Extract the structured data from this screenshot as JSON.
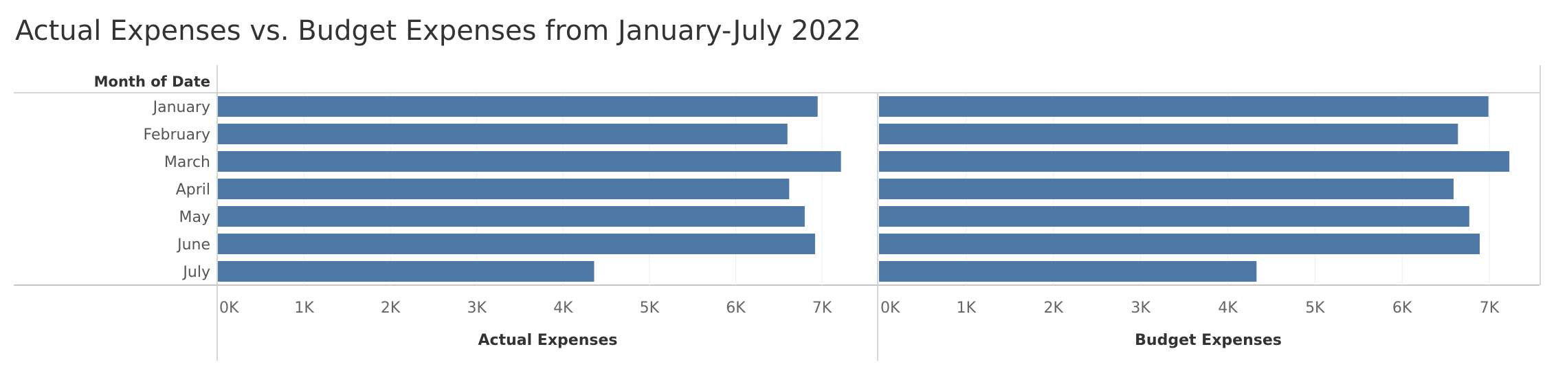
{
  "title": "Actual Expenses vs. Budget Expenses from January-July 2022",
  "chart_data": {
    "type": "bar",
    "orientation": "horizontal",
    "title": "Actual Expenses vs. Budget Expenses from January-July 2022",
    "row_header": "Month of Date",
    "categories": [
      "January",
      "February",
      "March",
      "April",
      "May",
      "June",
      "July"
    ],
    "panels": [
      {
        "xlabel": "Actual Expenses",
        "ticks": [
          "0K",
          "1K",
          "2K",
          "3K",
          "4K",
          "5K",
          "6K",
          "7K"
        ],
        "xlim": [
          0,
          7500
        ],
        "values": [
          6950,
          6600,
          7220,
          6620,
          6800,
          6920,
          4360
        ]
      },
      {
        "xlabel": "Budget Expenses",
        "ticks": [
          "0K",
          "1K",
          "2K",
          "3K",
          "4K",
          "5K",
          "6K",
          "7K"
        ],
        "xlim": [
          0,
          7500
        ],
        "values": [
          6990,
          6640,
          7230,
          6590,
          6770,
          6890,
          4330
        ]
      }
    ],
    "bar_color": "#4e79a7",
    "grid": "vertical"
  }
}
